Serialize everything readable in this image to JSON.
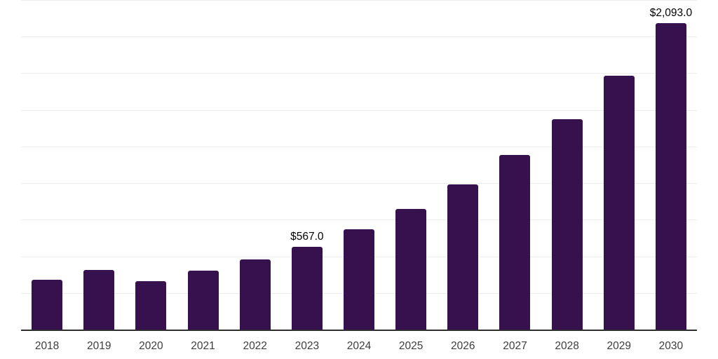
{
  "chart_data": {
    "type": "bar",
    "title": "",
    "xlabel": "",
    "ylabel": "",
    "categories": [
      "2018",
      "2019",
      "2020",
      "2021",
      "2022",
      "2023",
      "2024",
      "2025",
      "2026",
      "2027",
      "2028",
      "2029",
      "2030"
    ],
    "values": [
      340,
      406,
      330,
      403,
      479,
      567,
      683,
      822,
      992,
      1194,
      1437,
      1733,
      2093
    ],
    "bar_labels": [
      "",
      "",
      "",
      "",
      "",
      "$567.0",
      "",
      "",
      "",
      "",
      "",
      "",
      "$2,093.0"
    ],
    "ylim": [
      0,
      2250
    ],
    "grid": true,
    "grid_step": 250,
    "legend_position": "none",
    "colors": {
      "bar": "#36114D",
      "gridline": "#ededed",
      "axis_line": "#2e2e2e",
      "tick_label": "#3d3d3d",
      "value_label": "#000000",
      "background": "#ffffff"
    }
  }
}
